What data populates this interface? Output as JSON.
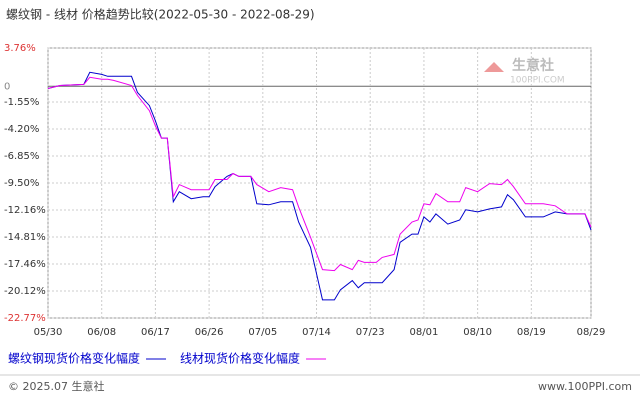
{
  "chart_data": {
    "type": "line",
    "title": "螺纹钢 - 线材 价格趋势比较(2022-05-30 - 2022-08-29)",
    "watermark": "生意社",
    "watermark_url": "100PPI.COM",
    "footer_left": "© 2025.07 生意社",
    "footer_right": "www.100PPI.com",
    "xlim": [
      0,
      91
    ],
    "xticks": [
      {
        "value": 0,
        "label": "05/30"
      },
      {
        "value": 9,
        "label": "06/08"
      },
      {
        "value": 18,
        "label": "06/17"
      },
      {
        "value": 27,
        "label": "06/26"
      },
      {
        "value": 36,
        "label": "07/05"
      },
      {
        "value": 45,
        "label": "07/14"
      },
      {
        "value": 54,
        "label": "07/23"
      },
      {
        "value": 63,
        "label": "08/01"
      },
      {
        "value": 72,
        "label": "08/10"
      },
      {
        "value": 81,
        "label": "08/19"
      },
      {
        "value": 91,
        "label": "08/29"
      }
    ],
    "ylim": [
      -22.77,
      3.76
    ],
    "yticks": [
      {
        "value": 3.76,
        "label": "3.76%"
      },
      0,
      {
        "value": -1.55,
        "label": "-1.55%"
      },
      {
        "value": -4.2,
        "label": "-4.20%"
      },
      {
        "value": -6.85,
        "label": "-6.85%"
      },
      {
        "value": -9.5,
        "label": "-9.50%"
      },
      {
        "value": -12.16,
        "label": "-12.16%"
      },
      {
        "value": -14.81,
        "label": "-14.81%"
      },
      {
        "value": -17.46,
        "label": "-17.46%"
      },
      {
        "value": -20.12,
        "label": "-20.12%"
      },
      {
        "value": -22.77,
        "label": "-22.77%"
      }
    ],
    "grid": true,
    "series": [
      {
        "name": "螺纹钢现货价格变化幅度",
        "color": "#0000cc",
        "x": [
          0,
          2,
          6,
          7,
          9,
          10,
          11,
          14,
          15,
          17,
          18,
          19,
          20,
          21,
          22,
          24,
          26,
          27,
          28,
          30,
          31,
          32,
          34,
          35,
          37,
          39,
          41,
          42,
          44,
          46,
          48,
          49,
          51,
          52,
          53,
          55,
          56,
          58,
          59,
          61,
          62,
          63,
          64,
          65,
          67,
          69,
          70,
          72,
          74,
          76,
          77,
          78,
          80,
          82,
          83,
          85,
          87,
          90,
          91
        ],
        "values": [
          -0.22,
          0.08,
          0.18,
          1.37,
          1.17,
          0.98,
          0.98,
          0.98,
          -0.61,
          -1.9,
          -3.39,
          -5.09,
          -5.09,
          -11.35,
          -10.36,
          -11.05,
          -10.85,
          -10.85,
          -9.86,
          -8.86,
          -8.57,
          -8.86,
          -8.86,
          -11.55,
          -11.65,
          -11.35,
          -11.35,
          -13.34,
          -15.82,
          -20.99,
          -20.99,
          -20.0,
          -19.1,
          -19.8,
          -19.3,
          -19.3,
          -19.3,
          -18.01,
          -15.33,
          -14.53,
          -14.53,
          -12.84,
          -13.34,
          -12.54,
          -13.54,
          -13.14,
          -12.14,
          -12.34,
          -12.05,
          -11.85,
          -10.65,
          -11.15,
          -12.84,
          -12.84,
          -12.84,
          -12.34,
          -12.54,
          -12.54,
          -14.13
        ]
      },
      {
        "name": "线材现货价格变化幅度",
        "color": "#ee00ee",
        "x": [
          0,
          2,
          6,
          7,
          9,
          10,
          11,
          14,
          15,
          17,
          18,
          19,
          20,
          21,
          22,
          24,
          27,
          28,
          30,
          31,
          32,
          34,
          35,
          37,
          39,
          41,
          42,
          44,
          46,
          48,
          49,
          51,
          52,
          53,
          55,
          56,
          58,
          59,
          61,
          62,
          63,
          64,
          65,
          67,
          69,
          70,
          72,
          74,
          76,
          77,
          78,
          80,
          82,
          83,
          85,
          87,
          90,
          91
        ],
        "values": [
          -0.22,
          0.08,
          0.18,
          0.88,
          0.68,
          0.68,
          0.58,
          0.08,
          -0.91,
          -2.4,
          -3.89,
          -5.09,
          -5.09,
          -10.85,
          -9.66,
          -10.16,
          -10.16,
          -9.16,
          -9.16,
          -8.57,
          -8.86,
          -8.86,
          -9.66,
          -10.36,
          -9.96,
          -10.16,
          -11.85,
          -14.83,
          -18.01,
          -18.11,
          -17.51,
          -18.01,
          -17.11,
          -17.31,
          -17.31,
          -16.82,
          -16.52,
          -14.53,
          -13.34,
          -13.14,
          -11.55,
          -11.65,
          -10.55,
          -11.35,
          -11.35,
          -9.96,
          -10.36,
          -9.56,
          -9.66,
          -9.16,
          -9.86,
          -11.55,
          -11.55,
          -11.55,
          -11.75,
          -12.54,
          -12.54,
          -13.83
        ]
      }
    ]
  }
}
